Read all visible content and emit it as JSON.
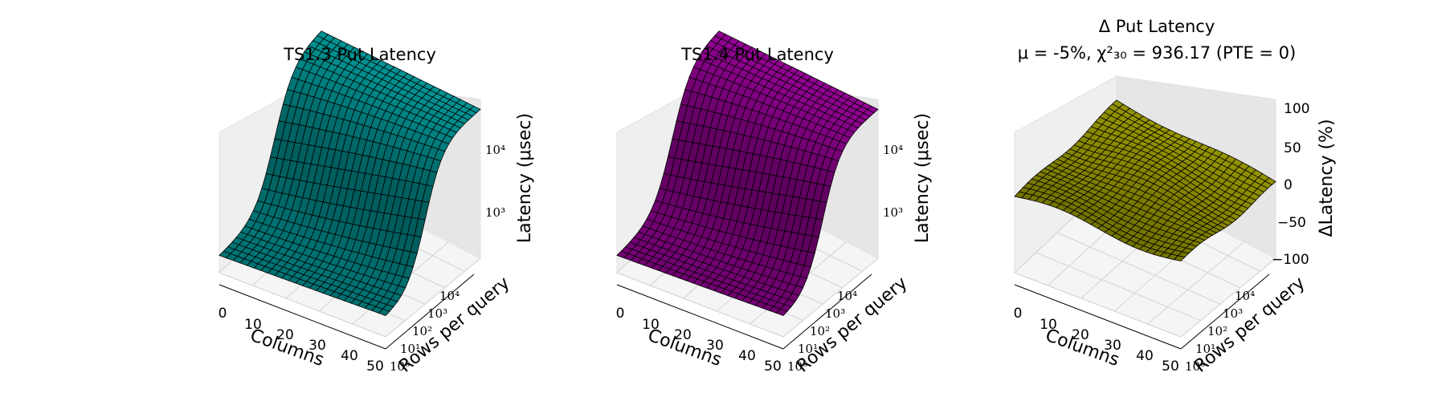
{
  "figure": {
    "panels": [
      {
        "title": "TS1.3 Put Latency",
        "subtitle": "",
        "zlabel": "Latency (μsec)",
        "xlabel": "Columns",
        "ylabel": "Rows per query"
      },
      {
        "title": "TS1.4 Put Latency",
        "subtitle": "",
        "zlabel": "Latency (μsec)",
        "xlabel": "Columns",
        "ylabel": "Rows per query"
      },
      {
        "title": "Δ Put Latency",
        "subtitle": "μ = -5%, χ²₃₀ = 936.17 (PTE = 0)",
        "zlabel": "ΔLatency (%)",
        "xlabel": "Columns",
        "ylabel": "Rows per query"
      }
    ]
  },
  "chart_data": [
    {
      "type": "surface",
      "title": "TS1.3 Put Latency",
      "xlabel": "Columns",
      "ylabel": "Rows per query",
      "zlabel": "Latency (μsec)",
      "color": "#00bfbf",
      "xlim": [
        0,
        50
      ],
      "xticks": [
        "0",
        "10",
        "20",
        "30",
        "40",
        "50"
      ],
      "ylim_log10": [
        0,
        4.8
      ],
      "yticks": [
        "10⁰",
        "10¹",
        "10²",
        "10³",
        "10⁴"
      ],
      "zlim_log10": [
        2.0,
        4.85
      ],
      "zticks": [
        "10³",
        "10⁴"
      ],
      "z_log10_min_approx": 2.3,
      "z_log10_max_approx": 4.6,
      "description_data": {
        "latency_low_usec_approx": 200,
        "latency_high_usec_approx": 40000
      }
    },
    {
      "type": "surface",
      "title": "TS1.4 Put Latency",
      "xlabel": "Columns",
      "ylabel": "Rows per query",
      "zlabel": "Latency (μsec)",
      "color": "#bf00bf",
      "xlim": [
        0,
        50
      ],
      "xticks": [
        "0",
        "10",
        "20",
        "30",
        "40",
        "50"
      ],
      "ylim_log10": [
        0,
        4.8
      ],
      "yticks": [
        "10⁰",
        "10¹",
        "10²",
        "10³",
        "10⁴"
      ],
      "zlim_log10": [
        2.0,
        4.85
      ],
      "zticks": [
        "10³",
        "10⁴"
      ],
      "z_log10_min_approx": 2.3,
      "z_log10_max_approx": 4.6
    },
    {
      "type": "surface",
      "title": "Δ Put Latency",
      "subtitle": "μ = -5%, χ²₃₀ = 936.17 (PTE = 0)",
      "xlabel": "Columns",
      "ylabel": "Rows per query",
      "zlabel": "ΔLatency (%)",
      "color": "#bfbf00",
      "xlim": [
        0,
        50
      ],
      "xticks": [
        "0",
        "10",
        "20",
        "30",
        "40",
        "50"
      ],
      "ylim_log10": [
        0,
        4.8
      ],
      "yticks": [
        "10⁰",
        "10¹",
        "10²",
        "10³",
        "10⁴"
      ],
      "zlim": [
        -100,
        100
      ],
      "zticks": [
        "100",
        "50",
        "0",
        "−50",
        "−100"
      ],
      "mean_percent": -5,
      "chi2": 936.17,
      "dof": 30,
      "pte": 0
    }
  ]
}
